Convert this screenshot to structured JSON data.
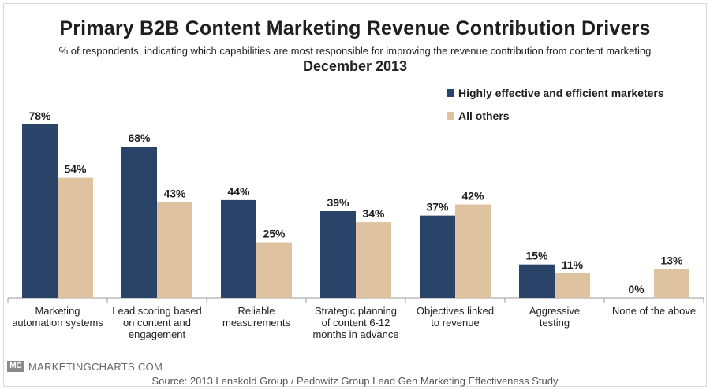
{
  "chart_data": {
    "type": "bar",
    "title": "Primary B2B Content Marketing Revenue Contribution Drivers",
    "subtitle": "% of respondents, indicating which capabilities are most responsible for improving the revenue contribution from content marketing",
    "date": "December 2013",
    "categories": [
      [
        "Marketing",
        "automation systems"
      ],
      [
        "Lead scoring based",
        "on content and",
        "engagement"
      ],
      [
        "Reliable",
        "measurements"
      ],
      [
        "Strategic planning",
        "of content 6-12",
        "months in advance"
      ],
      [
        "Objectives linked",
        "to revenue"
      ],
      [
        "Aggressive",
        "testing"
      ],
      [
        "None of the above"
      ]
    ],
    "series": [
      {
        "name": "Highly effective and efficient marketers",
        "color": "#2a4369",
        "values": [
          78,
          68,
          44,
          39,
          37,
          15,
          0
        ]
      },
      {
        "name": "All others",
        "color": "#dfc3a1",
        "values": [
          54,
          43,
          25,
          34,
          42,
          11,
          13
        ]
      }
    ],
    "value_suffix": "%",
    "ylim": [
      0,
      100
    ],
    "legend_position": "top-right"
  },
  "footer": {
    "brand_mark": "MC",
    "brand": "MARKETINGCHARTS.COM",
    "source": "Source: 2013 Lenskold Group / Pedowitz Group Lead Gen Marketing Effectiveness Study"
  }
}
